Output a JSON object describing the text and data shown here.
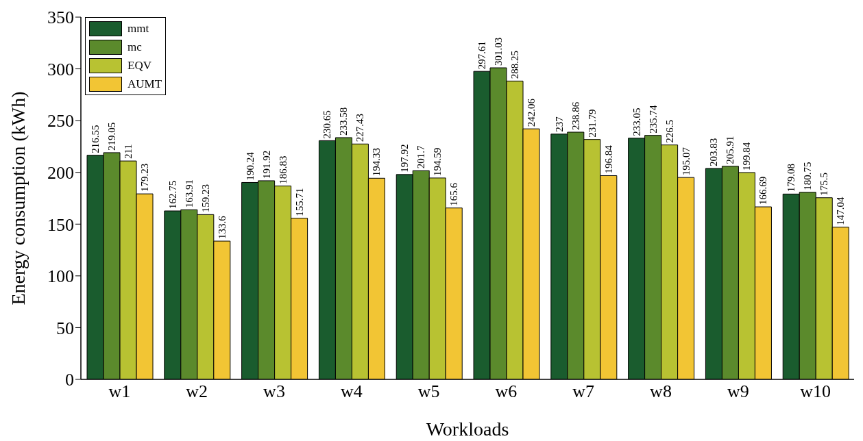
{
  "chart_data": {
    "type": "bar",
    "xlabel": "Workloads",
    "ylabel": "Energy consumption (kWh)",
    "categories": [
      "w1",
      "w2",
      "w3",
      "w4",
      "w5",
      "w6",
      "w7",
      "w8",
      "w9",
      "w10"
    ],
    "series": [
      {
        "name": "mmt",
        "color": "#1a5c2e",
        "values": [
          216.55,
          162.75,
          190.24,
          230.65,
          197.92,
          297.61,
          237,
          233.05,
          203.83,
          179.08
        ]
      },
      {
        "name": "mc",
        "color": "#5b8a2c",
        "values": [
          219.05,
          163.91,
          191.92,
          233.58,
          201.7,
          301.03,
          238.86,
          235.74,
          205.91,
          180.75
        ]
      },
      {
        "name": "EQV",
        "color": "#b8c232",
        "values": [
          211,
          159.23,
          186.83,
          227.43,
          194.59,
          288.25,
          231.79,
          226.5,
          199.84,
          175.5
        ]
      },
      {
        "name": "AUMT",
        "color": "#f2c534",
        "values": [
          179.23,
          133.6,
          155.71,
          194.33,
          165.6,
          242.06,
          196.84,
          195.07,
          166.69,
          147.04
        ]
      }
    ],
    "ylim": [
      0,
      350
    ],
    "yticks": [
      0,
      50,
      100,
      150,
      200,
      250,
      300,
      350
    ],
    "data_labels": true,
    "legend": "top left",
    "grid": false
  }
}
